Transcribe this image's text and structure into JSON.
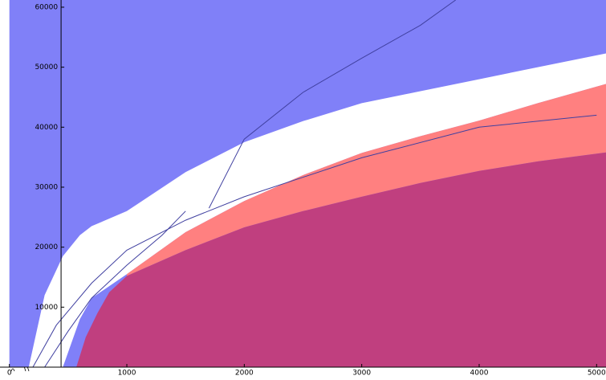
{
  "chart_data": {
    "type": "area",
    "background": "#8080f8",
    "xlim": [
      -80,
      5080
    ],
    "ylim": [
      0,
      61200
    ],
    "xticks": [
      0,
      1000,
      2000,
      3000,
      4000,
      5000
    ],
    "yticks": [
      10000,
      20000,
      30000,
      40000,
      50000,
      60000
    ],
    "y_axis_at": 440,
    "series": [
      {
        "type": "area",
        "color": "#ffffff",
        "x": [
          165,
          300,
          455,
          600,
          700,
          1000,
          1500,
          2000,
          2500,
          3000,
          3500,
          4000,
          4500,
          5080
        ],
        "values": [
          0,
          12000,
          18500,
          22000,
          23500,
          26000,
          32500,
          37500,
          41000,
          44000,
          46000,
          48000,
          50000,
          52300
        ],
        "base": [
          0,
          0,
          0,
          8000,
          11500,
          15500,
          22500,
          27700,
          32000,
          35700,
          38500,
          41100,
          44000,
          47200
        ]
      },
      {
        "type": "area",
        "color": "#ff8080",
        "x": [
          1000,
          1500,
          2000,
          2500,
          3000,
          3500,
          4000,
          4500,
          5080
        ],
        "values": [
          15500,
          22500,
          27700,
          32000,
          35700,
          38500,
          41100,
          44000,
          47200
        ],
        "base": [
          15200,
          19500,
          23300,
          26000,
          28400,
          30700,
          32700,
          34300,
          35800
        ]
      },
      {
        "type": "area",
        "color": "#c03f7f",
        "x": [
          570,
          650,
          750,
          850,
          1000,
          1500,
          2000,
          2500,
          3000,
          3500,
          4000,
          4500,
          5080
        ],
        "values": [
          0,
          5000,
          9000,
          12500,
          15200,
          19500,
          23300,
          26000,
          28400,
          30700,
          32700,
          34300,
          35800
        ],
        "base": [
          0,
          0,
          0,
          0,
          0,
          0,
          0,
          0,
          0,
          0,
          0,
          0,
          0
        ]
      },
      {
        "type": "line",
        "color": "#4040a0",
        "x": [
          200,
          400,
          700,
          1000,
          1500,
          2000,
          3000,
          4000,
          5000
        ],
        "values": [
          0,
          7000,
          14000,
          19500,
          24500,
          28400,
          34900,
          40000,
          42000
        ]
      },
      {
        "type": "line",
        "color": "#4040a0",
        "x": [
          300,
          500,
          700,
          1000,
          1300,
          1500
        ],
        "values": [
          0,
          6000,
          11500,
          17000,
          22000,
          26000
        ]
      },
      {
        "type": "line",
        "color": "#4040a0",
        "x": [
          1700,
          2000,
          2500,
          3000,
          3500,
          3800
        ],
        "values": [
          26500,
          38000,
          45800,
          51500,
          57000,
          61200
        ]
      }
    ]
  }
}
